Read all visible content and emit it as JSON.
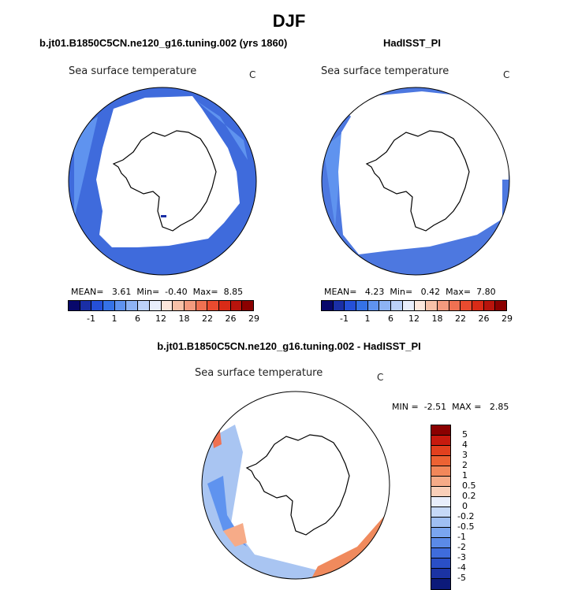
{
  "figure": {
    "title": "DJF"
  },
  "colors": {
    "sst_levels": [
      "#08086b",
      "#1a2fa6",
      "#2550d8",
      "#3572e6",
      "#5f93ef",
      "#8db3f4",
      "#bcd2f8",
      "#e8eefb",
      "#fce7dc",
      "#f7c1a8",
      "#f39a7e",
      "#ef7152",
      "#e94b2f",
      "#d92b17",
      "#b8140c",
      "#8b0000"
    ],
    "diff_levels": [
      "#8b0000",
      "#c71a0e",
      "#e2401e",
      "#ed6233",
      "#f2875a",
      "#f6ab88",
      "#f9cfb9",
      "#e8eefb",
      "#c6d9f7",
      "#9fbff3",
      "#7aa5ef",
      "#5b8ae7",
      "#3f6cdc",
      "#2a4fc6",
      "#1b33a3",
      "#0c1a7a"
    ],
    "ocean_model": "#3f6bdc",
    "ocean_obs": "#4d78e0",
    "ocean_diff": "#a9c5f2",
    "warm_diff": "#f08a5d"
  },
  "panels": [
    {
      "case": "b.jt01.B1850C5CN.ne120_g16.tuning.002 (yrs 1860)",
      "variable": "Sea surface temperature",
      "unit": "C",
      "stats": {
        "mean_label": "MEAN=",
        "mean": "3.61",
        "min_label": "Min=",
        "min": "-0.40",
        "max_label": "Max=",
        "max": "8.85"
      },
      "colorbar_ticks": [
        "-1",
        "1",
        "6",
        "12",
        "18",
        "22",
        "26",
        "29"
      ]
    },
    {
      "case": "HadISST_PI",
      "variable": "Sea surface temperature",
      "unit": "C",
      "stats": {
        "mean_label": "MEAN=",
        "mean": "4.23",
        "min_label": "Min=",
        "min": "0.42",
        "max_label": "Max=",
        "max": "7.80"
      },
      "colorbar_ticks": [
        "-1",
        "1",
        "6",
        "12",
        "18",
        "22",
        "26",
        "29"
      ]
    }
  ],
  "difference": {
    "title": "b.jt01.B1850C5CN.ne120_g16.tuning.002 - HadISST_PI",
    "variable": "Sea surface temperature",
    "unit": "C",
    "stats": {
      "min_label": "MIN =",
      "min": "-2.51",
      "max_label": "MAX =",
      "max": "2.85"
    },
    "colorbar_ticks": [
      "5",
      "4",
      "3",
      "2",
      "1",
      "0.5",
      "0.2",
      "0",
      "-0.2",
      "-0.5",
      "-1",
      "-2",
      "-3",
      "-4",
      "-5"
    ]
  }
}
